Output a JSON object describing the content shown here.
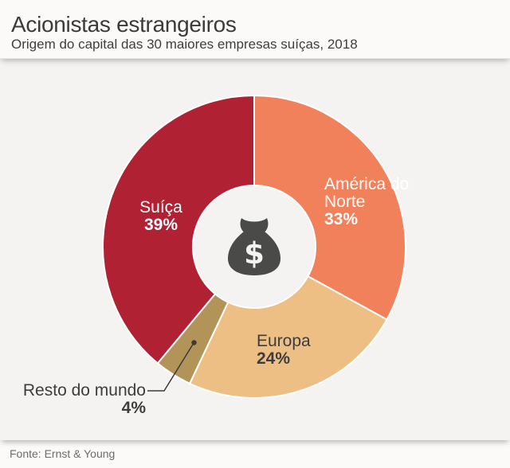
{
  "header": {
    "title": "Acionistas estrangeiros",
    "subtitle": "Origem do capital das 30 maiores empresas suíças, 2018"
  },
  "footer": {
    "source": "Fonte: Ernst & Young"
  },
  "colors": {
    "background": "#f4f3f1",
    "header_background": "#fbfaf9",
    "footer_background": "#fbfaf9",
    "segment_separator": "#ffffff",
    "icon_dark": "#4a4a48",
    "leader_line": "#3a3a3a",
    "text_dark": "#3d3d3d",
    "text_light": "#ffffff"
  },
  "chart_data": {
    "type": "pie",
    "donut": true,
    "title": "Acionistas estrangeiros",
    "subtitle": "Origem do capital das 30 maiores empresas suíças, 2018",
    "unit": "%",
    "start_angle_deg": 0,
    "direction": "clockwise",
    "legend_position": "on-chart",
    "segments": [
      {
        "label": "América do Norte",
        "value": 33,
        "pct": "33%",
        "color": "#f0815a",
        "label_color": "#ffffff"
      },
      {
        "label": "Europa",
        "value": 24,
        "pct": "24%",
        "color": "#edbf85",
        "label_color": "#3d3d3d"
      },
      {
        "label": "Resto do mundo",
        "value": 4,
        "pct": "4%",
        "color": "#b29459",
        "label_color": "#3d3d3d"
      },
      {
        "label": "Suíça",
        "value": 39,
        "pct": "39%",
        "color": "#b02133",
        "label_color": "#ffffff"
      }
    ],
    "center_icon": "money-bag-icon",
    "center_icon_symbol": "$"
  }
}
